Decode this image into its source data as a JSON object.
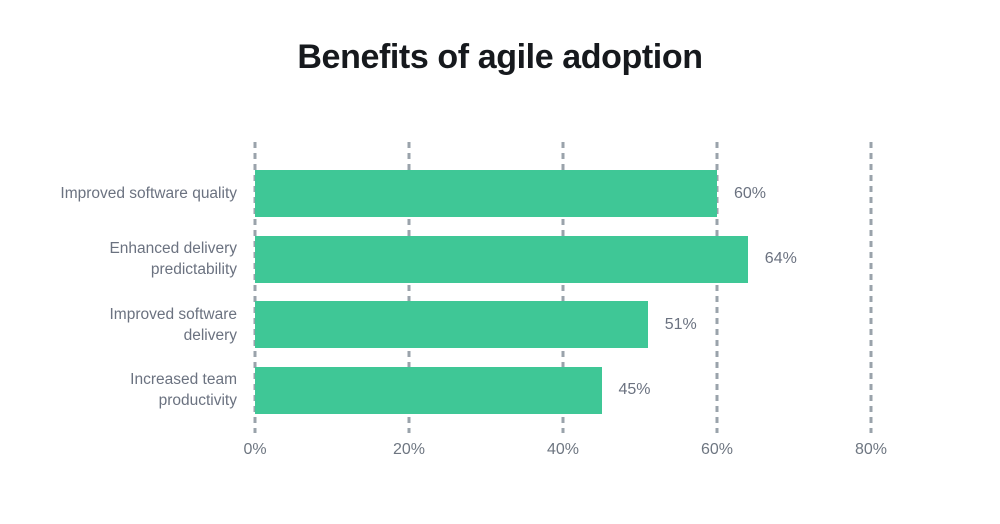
{
  "chart_data": {
    "type": "bar",
    "orientation": "horizontal",
    "title": "Benefits of agile adoption",
    "categories": [
      "Improved software quality",
      "Enhanced delivery predictability",
      "Improved software delivery",
      "Increased team productivity"
    ],
    "values": [
      60,
      64,
      51,
      45
    ],
    "value_labels": [
      "60%",
      "64%",
      "51%",
      "45%"
    ],
    "xlabel": "",
    "ylabel": "",
    "xlim": [
      0,
      80
    ],
    "x_ticks": [
      "0%",
      "20%",
      "40%",
      "60%",
      "80%"
    ],
    "x_tick_values": [
      0,
      20,
      40,
      60,
      80
    ],
    "grid": "dashed-vertical",
    "legend": "none",
    "colors": {
      "bar": "#3fc796",
      "grid": "#9aa3ab",
      "labels": "#6b7280",
      "ticks": "#6e7681",
      "title": "#16191d",
      "background": "#ffffff"
    }
  }
}
